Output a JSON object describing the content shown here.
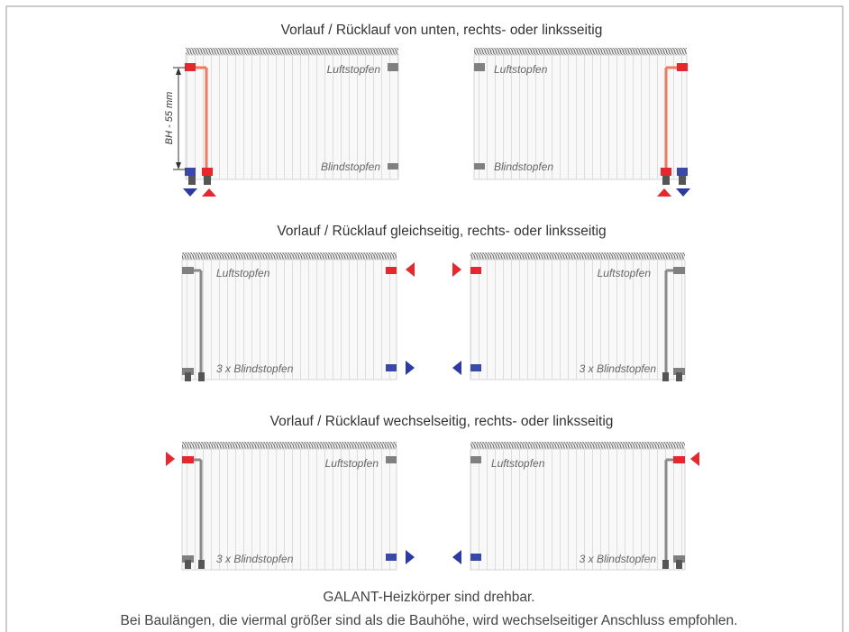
{
  "sections": [
    {
      "title": "Vorlauf / Rücklauf von unten, rechts- oder linksseitig",
      "left": {
        "top_label": "Luftstopfen",
        "bottom_label": "Blindstopfen",
        "dimension_label": "BH - 55 mm"
      },
      "right": {
        "top_label": "Luftstopfen",
        "bottom_label": "Blindstopfen"
      }
    },
    {
      "title": "Vorlauf / Rücklauf gleichseitig, rechts- oder linksseitig",
      "left": {
        "top_label": "Luftstopfen",
        "bottom_label": "3 x Blindstopfen"
      },
      "right": {
        "top_label": "Luftstopfen",
        "bottom_label": "3 x Blindstopfen"
      }
    },
    {
      "title": "Vorlauf / Rücklauf wechselseitig, rechts- oder linksseitig",
      "left": {
        "top_label": "Luftstopfen",
        "bottom_label": "3 x Blindstopfen"
      },
      "right": {
        "top_label": "Luftstopfen",
        "bottom_label": "3 x Blindstopfen"
      }
    }
  ],
  "footer": {
    "line1": "GALANT-Heizkörper sind drehbar.",
    "line2": "Bei Baulängen, die viermal größer sind als die Bauhöhe, wird wechselseitiger Anschluss empfohlen."
  },
  "colors": {
    "supply": "#e8262b",
    "return": "#2b3aa6",
    "pipe": "#8a8a8a",
    "panel": "#f7f7f7",
    "frame_border": "#9a9a9a"
  }
}
